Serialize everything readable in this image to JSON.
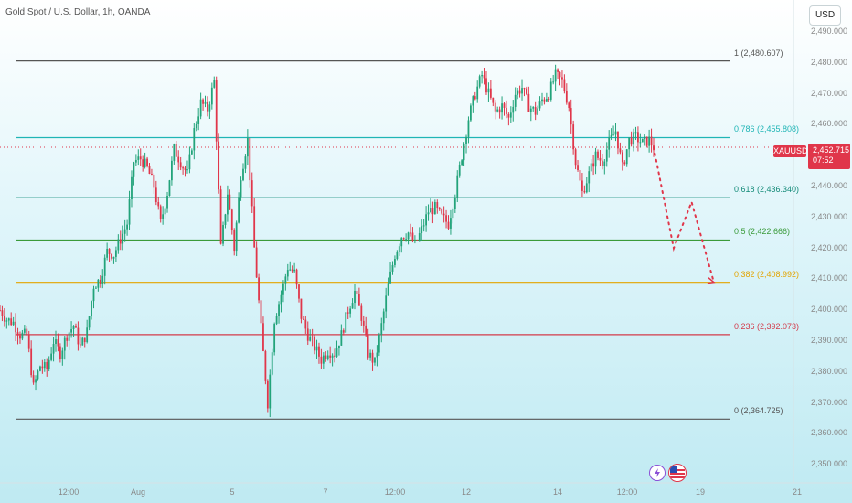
{
  "header": {
    "title": "Gold Spot / U.S. Dollar, 1h, OANDA"
  },
  "toolbar": {
    "currency": "USD"
  },
  "price_axis": {
    "labels": [
      "2,490.000",
      "2,480.000",
      "2,470.000",
      "2,460.000",
      "2,440.000",
      "2,430.000",
      "2,420.000",
      "2,410.000",
      "2,400.000",
      "2,390.000",
      "2,380.000",
      "2,370.000",
      "2,360.000",
      "2,350.000"
    ]
  },
  "time_axis": {
    "labels": [
      "12:00",
      "Aug",
      "5",
      "7",
      "12:00",
      "12",
      "14",
      "12:00",
      "19",
      "21"
    ]
  },
  "fib_levels": [
    {
      "label": "1 (2,480.607)",
      "color": "#555555"
    },
    {
      "label": "0.786 (2,455.808)",
      "color": "#1fb5b5"
    },
    {
      "label": "0.618 (2,436.340)",
      "color": "#138a78"
    },
    {
      "label": "0.5 (2,422.666)",
      "color": "#3a9a3a"
    },
    {
      "label": "0.382 (2,408.992)",
      "color": "#e3a400"
    },
    {
      "label": "0.236 (2,392.073)",
      "color": "#d33a4a"
    },
    {
      "label": "0 (2,364.725)",
      "color": "#555555"
    }
  ],
  "symbol_tag": "XAUUSD",
  "current_price": "2,452.715",
  "countdown": "07:52",
  "colors": {
    "up": "#22a37a",
    "down": "#e0364a",
    "projection": "#e0364a"
  },
  "icons": [
    "lightning-icon",
    "us-flag-icon"
  ],
  "chart_data": {
    "type": "candlestick",
    "symbol": "XAUUSD",
    "interval": "1h",
    "ylim": [
      2345,
      2495
    ],
    "fib_values": [
      2480.607,
      2455.808,
      2436.34,
      2422.666,
      2408.992,
      2392.073,
      2364.725
    ],
    "close_path": [
      [
        0,
        2400
      ],
      [
        3,
        2397
      ],
      [
        6,
        2396
      ],
      [
        9,
        2392
      ],
      [
        12,
        2392
      ],
      [
        15,
        2375
      ],
      [
        18,
        2382
      ],
      [
        21,
        2381
      ],
      [
        24,
        2390
      ],
      [
        27,
        2386
      ],
      [
        30,
        2392
      ],
      [
        33,
        2395
      ],
      [
        36,
        2388
      ],
      [
        39,
        2393
      ],
      [
        42,
        2408
      ],
      [
        45,
        2410
      ],
      [
        48,
        2419
      ],
      [
        51,
        2418
      ],
      [
        54,
        2423
      ],
      [
        57,
        2428
      ],
      [
        60,
        2448
      ],
      [
        63,
        2449
      ],
      [
        66,
        2446
      ],
      [
        69,
        2440
      ],
      [
        72,
        2428
      ],
      [
        75,
        2438
      ],
      [
        78,
        2452
      ],
      [
        81,
        2448
      ],
      [
        84,
        2444
      ],
      [
        87,
        2458
      ],
      [
        90,
        2467
      ],
      [
        93,
        2465
      ],
      [
        96,
        2474
      ],
      [
        99,
        2420
      ],
      [
        102,
        2438
      ],
      [
        105,
        2420
      ],
      [
        108,
        2444
      ],
      [
        111,
        2455
      ],
      [
        114,
        2420
      ],
      [
        117,
        2394
      ],
      [
        120,
        2370
      ],
      [
        123,
        2397
      ],
      [
        126,
        2405
      ],
      [
        129,
        2414
      ],
      [
        132,
        2412
      ],
      [
        135,
        2398
      ],
      [
        138,
        2392
      ],
      [
        141,
        2388
      ],
      [
        144,
        2384
      ],
      [
        147,
        2387
      ],
      [
        150,
        2386
      ],
      [
        153,
        2392
      ],
      [
        156,
        2400
      ],
      [
        159,
        2406
      ],
      [
        162,
        2398
      ],
      [
        165,
        2386
      ],
      [
        168,
        2383
      ],
      [
        171,
        2395
      ],
      [
        174,
        2408
      ],
      [
        177,
        2418
      ],
      [
        180,
        2424
      ],
      [
        183,
        2425
      ],
      [
        186,
        2421
      ],
      [
        189,
        2426
      ],
      [
        192,
        2432
      ],
      [
        195,
        2433
      ],
      [
        198,
        2430
      ],
      [
        201,
        2428
      ],
      [
        204,
        2438
      ],
      [
        207,
        2450
      ],
      [
        210,
        2462
      ],
      [
        213,
        2470
      ],
      [
        216,
        2476
      ],
      [
        219,
        2470
      ],
      [
        222,
        2464
      ],
      [
        225,
        2466
      ],
      [
        228,
        2462
      ],
      [
        231,
        2470
      ],
      [
        234,
        2472
      ],
      [
        237,
        2466
      ],
      [
        240,
        2464
      ],
      [
        243,
        2468
      ],
      [
        246,
        2470
      ],
      [
        249,
        2476
      ],
      [
        252,
        2474
      ],
      [
        255,
        2466
      ],
      [
        258,
        2448
      ],
      [
        261,
        2438
      ],
      [
        264,
        2444
      ],
      [
        267,
        2450
      ],
      [
        270,
        2448
      ],
      [
        273,
        2454
      ],
      [
        276,
        2458
      ],
      [
        279,
        2446
      ],
      [
        282,
        2455
      ],
      [
        285,
        2456
      ],
      [
        288,
        2454
      ],
      [
        291,
        2455
      ],
      [
        293,
        2452.7
      ]
    ],
    "projection": [
      [
        293,
        2452.7
      ],
      [
        302,
        2420
      ],
      [
        310,
        2435
      ],
      [
        320,
        2409
      ]
    ]
  }
}
